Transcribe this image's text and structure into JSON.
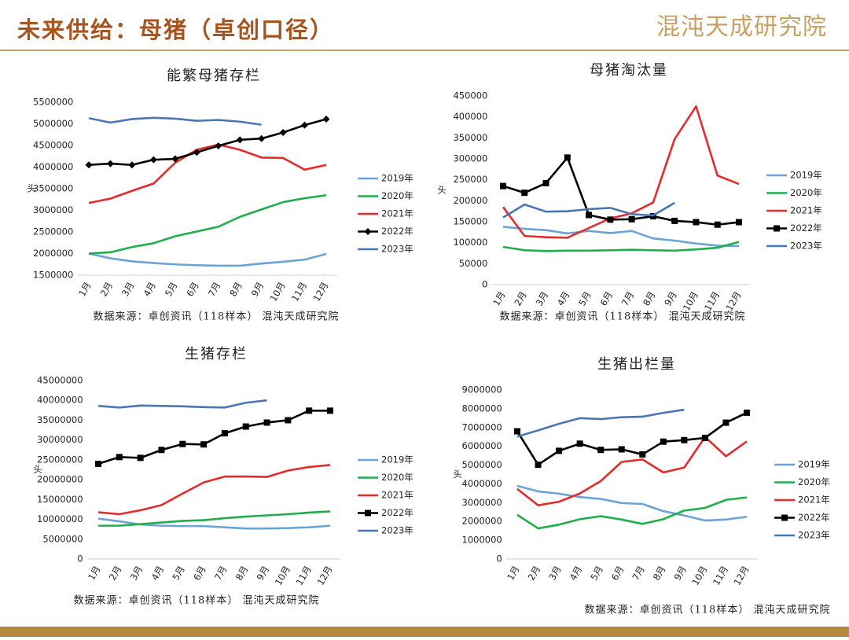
{
  "header": {
    "title": "未来供给：母猪（卓创口径）",
    "logo": "混沌天成研究院"
  },
  "chart_data": [
    {
      "type": "line",
      "title": "能繁母猪存栏",
      "ylabel": "头",
      "source": "数据来源：卓创资讯（118样本） 混沌天成研究院",
      "categories": [
        "1月",
        "2月",
        "3月",
        "4月",
        "5月",
        "6月",
        "7月",
        "8月",
        "9月",
        "10月",
        "11月",
        "12月"
      ],
      "ylim": [
        1500000,
        5500000
      ],
      "yticks": [
        1500000,
        2000000,
        2500000,
        3000000,
        3500000,
        4000000,
        4500000,
        5000000,
        5500000
      ],
      "grid": false,
      "series": [
        {
          "name": "2019年",
          "color": "#6aa3d6",
          "values": [
            2000000,
            1890000,
            1820000,
            1780000,
            1750000,
            1730000,
            1720000,
            1720000,
            1770000,
            1810000,
            1860000,
            1990000
          ]
        },
        {
          "name": "2020年",
          "color": "#1fae4b",
          "values": [
            2000000,
            2030000,
            2150000,
            2240000,
            2400000,
            2510000,
            2620000,
            2850000,
            3020000,
            3190000,
            3280000,
            3350000
          ]
        },
        {
          "name": "2021年",
          "color": "#e52b2b",
          "values": [
            3170000,
            3270000,
            3450000,
            3620000,
            4100000,
            4400000,
            4520000,
            4400000,
            4220000,
            4210000,
            3940000,
            4050000
          ]
        },
        {
          "name": "2022年",
          "color": "#000000",
          "marker": "diamond",
          "values": [
            4050000,
            4080000,
            4050000,
            4170000,
            4190000,
            4340000,
            4490000,
            4630000,
            4660000,
            4800000,
            4970000,
            5110000
          ]
        },
        {
          "name": "2023年",
          "color": "#4a76b5",
          "values": [
            5130000,
            5030000,
            5110000,
            5140000,
            5120000,
            5070000,
            5090000,
            5050000,
            4980000,
            null,
            null,
            null
          ]
        }
      ]
    },
    {
      "type": "line",
      "title": "母猪淘汰量",
      "ylabel": "头",
      "source": "数据来源：卓创资讯（118样本） 混沌天成研究院",
      "categories": [
        "1月",
        "2月",
        "3月",
        "4月",
        "5月",
        "6月",
        "7月",
        "8月",
        "9月",
        "10月",
        "11月",
        "12月"
      ],
      "ylim": [
        0,
        450000
      ],
      "yticks": [
        0,
        50000,
        100000,
        150000,
        200000,
        250000,
        300000,
        350000,
        400000,
        450000
      ],
      "grid": false,
      "series": [
        {
          "name": "2019年",
          "color": "#6aa3d6",
          "values": [
            138000,
            133000,
            130000,
            122000,
            128000,
            123000,
            128000,
            110000,
            105000,
            98000,
            93000,
            92000
          ]
        },
        {
          "name": "2020年",
          "color": "#1fae4b",
          "values": [
            90000,
            82000,
            80000,
            81000,
            81000,
            82000,
            83000,
            82000,
            81000,
            84000,
            88000,
            102000
          ]
        },
        {
          "name": "2021年",
          "color": "#e52b2b",
          "values": [
            185000,
            116000,
            113000,
            112000,
            135000,
            158000,
            170000,
            196000,
            347000,
            425000,
            260000,
            240000
          ]
        },
        {
          "name": "2022年",
          "color": "#000000",
          "marker": "square",
          "values": [
            235000,
            219000,
            242000,
            303000,
            166000,
            155000,
            156000,
            163000,
            152000,
            149000,
            143000,
            149000
          ]
        },
        {
          "name": "2023年",
          "color": "#4a76b5",
          "values": [
            160000,
            191000,
            174000,
            175000,
            180000,
            183000,
            168000,
            165000,
            195000,
            null,
            null,
            null
          ]
        }
      ]
    },
    {
      "type": "line",
      "title": "生猪存栏",
      "ylabel": "头",
      "source": "数据来源：卓创资讯（118样本） 混沌天成研究院",
      "categories": [
        "1月",
        "2月",
        "3月",
        "4月",
        "5月",
        "6月",
        "7月",
        "8月",
        "9月",
        "10月",
        "11月",
        "12月"
      ],
      "ylim": [
        0,
        45000000
      ],
      "yticks": [
        0,
        5000000,
        10000000,
        15000000,
        20000000,
        25000000,
        30000000,
        35000000,
        40000000,
        45000000
      ],
      "grid": false,
      "series": [
        {
          "name": "2019年",
          "color": "#6aa3d6",
          "values": [
            10200000,
            9500000,
            8700000,
            8400000,
            8300000,
            8300000,
            8000000,
            7700000,
            7700000,
            7800000,
            8000000,
            8400000
          ]
        },
        {
          "name": "2020年",
          "color": "#1fae4b",
          "values": [
            8400000,
            8400000,
            8800000,
            9200000,
            9600000,
            9800000,
            10300000,
            10700000,
            11000000,
            11300000,
            11700000,
            12000000
          ]
        },
        {
          "name": "2021年",
          "color": "#e52b2b",
          "values": [
            11800000,
            11300000,
            12300000,
            13600000,
            16500000,
            19300000,
            20800000,
            20800000,
            20700000,
            22300000,
            23200000,
            23700000
          ]
        },
        {
          "name": "2022年",
          "color": "#000000",
          "marker": "square",
          "values": [
            24000000,
            25700000,
            25500000,
            27500000,
            29000000,
            28900000,
            31700000,
            33400000,
            34400000,
            35000000,
            37400000,
            37400000
          ]
        },
        {
          "name": "2023年",
          "color": "#4a76b5",
          "values": [
            38600000,
            38200000,
            38700000,
            38600000,
            38500000,
            38300000,
            38200000,
            39400000,
            40000000,
            null,
            null,
            null
          ]
        }
      ]
    },
    {
      "type": "line",
      "title": "生猪出栏量",
      "ylabel": "头",
      "source": "数据来源：卓创资讯（118样本） 混沌天成研究院",
      "categories": [
        "1月",
        "2月",
        "3月",
        "4月",
        "5月",
        "6月",
        "7月",
        "8月",
        "9月",
        "10月",
        "11月",
        "12月"
      ],
      "ylim": [
        0,
        9000000
      ],
      "yticks": [
        0,
        1000000,
        2000000,
        3000000,
        4000000,
        5000000,
        6000000,
        7000000,
        8000000,
        9000000
      ],
      "grid": false,
      "series": [
        {
          "name": "2019年",
          "color": "#6aa3d6",
          "values": [
            3900000,
            3600000,
            3480000,
            3300000,
            3200000,
            2980000,
            2930000,
            2550000,
            2320000,
            2050000,
            2100000,
            2250000
          ]
        },
        {
          "name": "2020年",
          "color": "#1fae4b",
          "values": [
            2350000,
            1630000,
            1830000,
            2120000,
            2280000,
            2100000,
            1870000,
            2120000,
            2580000,
            2720000,
            3150000,
            3280000
          ]
        },
        {
          "name": "2021年",
          "color": "#e52b2b",
          "values": [
            3730000,
            2860000,
            3050000,
            3490000,
            4150000,
            5170000,
            5300000,
            4610000,
            4870000,
            6500000,
            5470000,
            6260000
          ]
        },
        {
          "name": "2022年",
          "color": "#000000",
          "marker": "square",
          "values": [
            6800000,
            5020000,
            5760000,
            6140000,
            5810000,
            5840000,
            5570000,
            6250000,
            6330000,
            6450000,
            7260000,
            7790000
          ]
        },
        {
          "name": "2023年",
          "color": "#4a76b5",
          "values": [
            6520000,
            6850000,
            7200000,
            7500000,
            7450000,
            7550000,
            7580000,
            7780000,
            7950000,
            null,
            null,
            null
          ]
        }
      ]
    }
  ]
}
